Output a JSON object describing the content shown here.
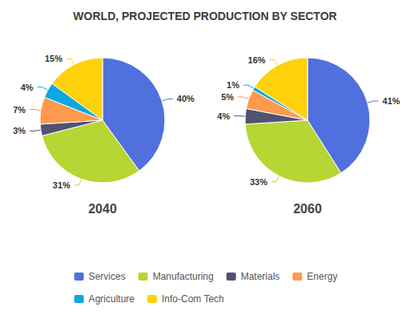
{
  "chart_data": {
    "type": "pie",
    "title": "WORLD, PROJECTED PRODUCTION BY SECTOR",
    "categories": [
      "Services",
      "Manufacturing",
      "Materials",
      "Energy",
      "Agriculture",
      "Info-Com Tech"
    ],
    "series": [
      {
        "name": "2040",
        "values": [
          40,
          31,
          3,
          7,
          4,
          15
        ],
        "value_labels": [
          "40%",
          "31%",
          "3%",
          "7%",
          "4%",
          "15%"
        ]
      },
      {
        "name": "2060",
        "values": [
          41,
          33,
          4,
          5,
          1,
          16
        ],
        "value_labels": [
          "41%",
          "33%",
          "4%",
          "5%",
          "1%",
          "16%"
        ]
      }
    ],
    "data_labels": true,
    "legend": "bottom"
  }
}
